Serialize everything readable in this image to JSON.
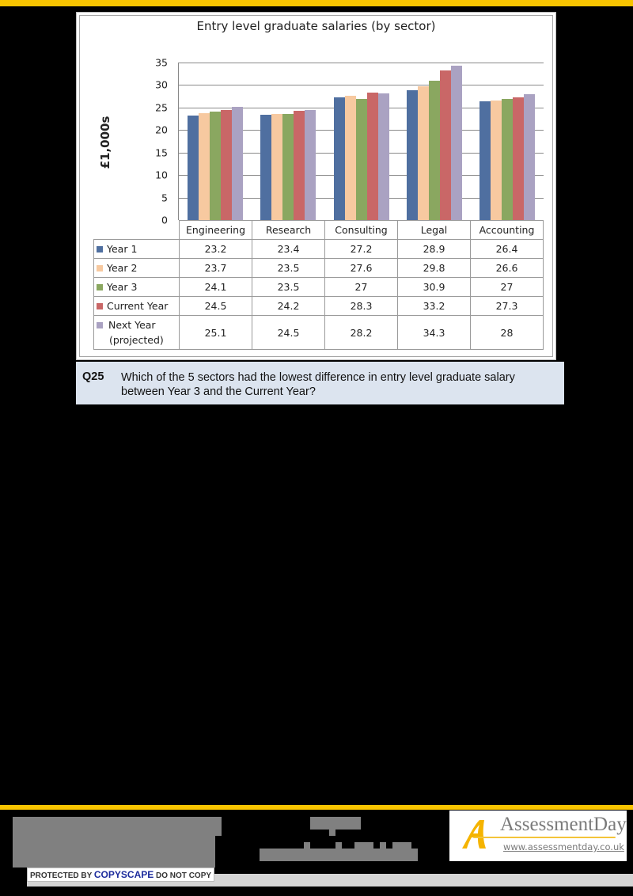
{
  "chart_data": {
    "type": "bar",
    "title": "Entry level graduate salaries (by sector)",
    "xlabel": "",
    "ylabel": "£1,000s",
    "ylim": [
      0,
      35
    ],
    "yticks": [
      "35",
      "30",
      "25",
      "20",
      "15",
      "10",
      "5",
      "0"
    ],
    "grid": true,
    "legend_position": "data-table",
    "categories": [
      "Engineering",
      "Research",
      "Consulting",
      "Legal",
      "Accounting"
    ],
    "series": [
      {
        "name": "Year 1",
        "color": "#4f6fa0",
        "values": [
          23.2,
          23.4,
          27.2,
          28.9,
          26.4
        ],
        "labels": [
          "23.2",
          "23.4",
          "27.2",
          "28.9",
          "26.4"
        ]
      },
      {
        "name": "Year 2",
        "color": "#f7c9a0",
        "values": [
          23.7,
          23.5,
          27.6,
          29.8,
          26.6
        ],
        "labels": [
          "23.7",
          "23.5",
          "27.6",
          "29.8",
          "26.6"
        ]
      },
      {
        "name": "Year 3",
        "color": "#8aa760",
        "values": [
          24.1,
          23.5,
          27,
          30.9,
          27
        ],
        "labels": [
          "24.1",
          "23.5",
          "27",
          "30.9",
          "27"
        ]
      },
      {
        "name": "Current Year",
        "color": "#c96767",
        "values": [
          24.5,
          24.2,
          28.3,
          33.2,
          27.3
        ],
        "labels": [
          "24.5",
          "24.2",
          "28.3",
          "33.2",
          "27.3"
        ]
      },
      {
        "name": "Next Year (projected)",
        "name_line1": "Next Year",
        "name_line2": "(projected)",
        "color": "#aaa2c2",
        "values": [
          25.1,
          24.5,
          28.2,
          34.3,
          28
        ],
        "labels": [
          "25.1",
          "24.5",
          "28.2",
          "34.3",
          "28"
        ]
      }
    ]
  },
  "question": {
    "number": "Q25",
    "text": "Which of the 5 sectors had the lowest difference in entry level graduate salary between Year 3 and the Current Year?"
  },
  "footer": {
    "copyscape_prefix": "PROTECTED BY ",
    "copyscape_brand": "COPYSCAPE",
    "copyscape_suffix": " DO NOT COPY",
    "logo_name": "AssessmentDay",
    "logo_url": "www.assessmentday.co.uk"
  },
  "colors": {
    "accent_bar": "#f8c400",
    "question_bg": "#dce4ef"
  }
}
